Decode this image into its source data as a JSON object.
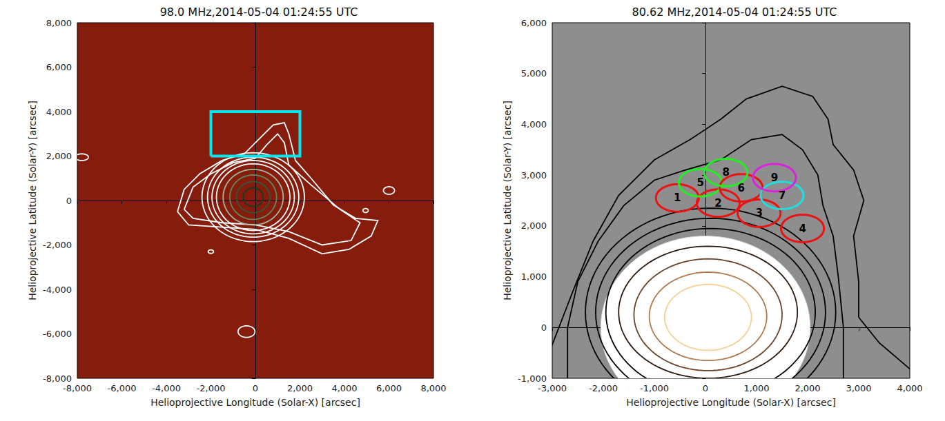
{
  "chart_data": [
    {
      "type": "contour",
      "title": "98.0 MHz,2014-05-04 01:24:55 UTC",
      "xlabel": "Helioprojective Longitude (Solar-X) [arcsec]",
      "ylabel": "Helioprojective Latitude (Solar-Y) [arcsec]",
      "xlim": [
        -8000,
        8000
      ],
      "ylim": [
        -8000,
        8000
      ],
      "xticks": [
        -8000,
        -6000,
        -4000,
        -2000,
        0,
        2000,
        4000,
        6000,
        8000
      ],
      "yticks": [
        -8000,
        -6000,
        -4000,
        -2000,
        0,
        2000,
        4000,
        6000,
        8000
      ],
      "contours": [
        {
          "color": "#ffffff",
          "points": [
            [
              -3500,
              -500
            ],
            [
              -3200,
              500
            ],
            [
              -2500,
              1200
            ],
            [
              -1500,
              1800
            ],
            [
              -500,
              2100
            ],
            [
              200,
              2800
            ],
            [
              800,
              3400
            ],
            [
              1300,
              3500
            ],
            [
              1500,
              3000
            ],
            [
              1800,
              1800
            ],
            [
              2500,
              1000
            ],
            [
              3500,
              -200
            ],
            [
              4500,
              -800
            ],
            [
              5500,
              -900
            ],
            [
              5200,
              -1600
            ],
            [
              4200,
              -2200
            ],
            [
              3000,
              -2400
            ],
            [
              1500,
              -1700
            ],
            [
              0,
              -1300
            ],
            [
              -1500,
              -1200
            ],
            [
              -3000,
              -1100
            ]
          ]
        },
        {
          "color": "#ffffff",
          "points": [
            [
              -3200,
              -400
            ],
            [
              -2800,
              600
            ],
            [
              -2000,
              1200
            ],
            [
              -1000,
              1700
            ],
            [
              0,
              1900
            ],
            [
              500,
              2500
            ],
            [
              1000,
              3000
            ],
            [
              1300,
              2600
            ],
            [
              1500,
              1600
            ],
            [
              2500,
              700
            ],
            [
              3800,
              -400
            ],
            [
              4700,
              -1000
            ],
            [
              4300,
              -1800
            ],
            [
              3000,
              -2000
            ],
            [
              1500,
              -1400
            ],
            [
              0,
              -1100
            ],
            [
              -1500,
              -1000
            ],
            [
              -2800,
              -800
            ]
          ]
        }
      ],
      "contour_ellipses": [
        {
          "color": "#ffffff",
          "cx": -100,
          "cy": 150,
          "rx": 2300,
          "ry": 2000
        },
        {
          "color": "#ffffff",
          "cx": -100,
          "cy": 150,
          "rx": 2050,
          "ry": 1800
        },
        {
          "color": "#ffffff",
          "cx": -100,
          "cy": 150,
          "rx": 1850,
          "ry": 1650
        },
        {
          "color": "#ffffff",
          "cx": -100,
          "cy": 150,
          "rx": 1650,
          "ry": 1500
        },
        {
          "color": "#9fb89a",
          "cx": -100,
          "cy": 150,
          "rx": 1350,
          "ry": 1250
        },
        {
          "color": "#5f8a60",
          "cx": -100,
          "cy": 150,
          "rx": 1050,
          "ry": 1000
        },
        {
          "color": "#2e5a3a",
          "cx": -100,
          "cy": 150,
          "rx": 750,
          "ry": 700
        },
        {
          "color": "#163a24",
          "cx": -100,
          "cy": 150,
          "rx": 450,
          "ry": 420
        },
        {
          "color": "#ffffff",
          "cx": -7800,
          "cy": 1950,
          "rx": 300,
          "ry": 150
        },
        {
          "color": "#ffffff",
          "cx": 6000,
          "cy": 450,
          "rx": 250,
          "ry": 170
        },
        {
          "color": "#ffffff",
          "cx": 4950,
          "cy": -450,
          "rx": 120,
          "ry": 90
        },
        {
          "color": "#ffffff",
          "cx": -2000,
          "cy": -2300,
          "rx": 120,
          "ry": 80
        },
        {
          "color": "#ffffff",
          "cx": -400,
          "cy": -5900,
          "rx": 380,
          "ry": 260
        }
      ],
      "boxes": [
        {
          "color": "#00e8f0",
          "x": [
            -2000,
            2000
          ],
          "y": [
            2000,
            4000
          ]
        }
      ]
    },
    {
      "type": "contour",
      "title": "80.62 MHz,2014-05-04 01:24:55 UTC",
      "xlabel": "Helioprojective Longitude (Solar-X) [arcsec]",
      "ylabel": "Helioprojective Latitude (Solar-Y) [arcsec]",
      "xlim": [
        -3000,
        4000
      ],
      "ylim": [
        -1000,
        6000
      ],
      "xticks": [
        -3000,
        -2000,
        -1000,
        0,
        1000,
        2000,
        3000,
        4000
      ],
      "yticks": [
        -1000,
        0,
        1000,
        2000,
        3000,
        4000,
        5000,
        6000
      ],
      "occulter": {
        "cx": 0,
        "cy": 0,
        "rx": 2050,
        "ry": 1800
      },
      "contours": [
        {
          "color": "#000000",
          "points": [
            [
              -3100,
              -600
            ],
            [
              -2600,
              700
            ],
            [
              -2200,
              1700
            ],
            [
              -1700,
              2600
            ],
            [
              -1000,
              3300
            ],
            [
              -300,
              3700
            ],
            [
              300,
              4100
            ],
            [
              800,
              4500
            ],
            [
              1500,
              4750
            ],
            [
              2100,
              4550
            ],
            [
              2400,
              4100
            ],
            [
              2500,
              3600
            ],
            [
              2900,
              3100
            ],
            [
              3100,
              2500
            ],
            [
              2900,
              1800
            ],
            [
              3000,
              900
            ],
            [
              3000,
              200
            ],
            [
              3400,
              -300
            ],
            [
              4100,
              -900
            ],
            [
              4100,
              -1500
            ],
            [
              -3100,
              -1500
            ]
          ]
        },
        {
          "color": "#000000",
          "points": [
            [
              -2700,
              -1100
            ],
            [
              -2700,
              0
            ],
            [
              -2500,
              900
            ],
            [
              -2100,
              1700
            ],
            [
              -1600,
              2400
            ],
            [
              -1000,
              2900
            ],
            [
              -400,
              3100
            ],
            [
              300,
              3300
            ],
            [
              900,
              3700
            ],
            [
              1500,
              3800
            ],
            [
              1900,
              3500
            ],
            [
              2200,
              3000
            ],
            [
              2300,
              2400
            ],
            [
              2500,
              1800
            ],
            [
              2600,
              1000
            ],
            [
              2700,
              0
            ],
            [
              2700,
              -1100
            ]
          ]
        }
      ],
      "contour_ellipses": [
        {
          "color": "#000000",
          "cx": 100,
          "cy": 300,
          "rx": 2450,
          "ry": 2050
        },
        {
          "color": "#000000",
          "cx": 100,
          "cy": 300,
          "rx": 2250,
          "ry": 1850
        },
        {
          "color": "#000000",
          "cx": 100,
          "cy": 300,
          "rx": 2050,
          "ry": 1650
        },
        {
          "color": "#2a1a10",
          "cx": 50,
          "cy": 300,
          "rx": 1750,
          "ry": 1300
        },
        {
          "color": "#6b4428",
          "cx": 50,
          "cy": 250,
          "rx": 1450,
          "ry": 1100
        },
        {
          "color": "#b07a4e",
          "cx": 50,
          "cy": 220,
          "rx": 1150,
          "ry": 870
        },
        {
          "color": "#f7cf92",
          "cx": 50,
          "cy": 200,
          "rx": 850,
          "ry": 650
        }
      ],
      "regions": [
        {
          "label": "1",
          "color": "#ee1111",
          "cx": -550,
          "cy": 2550,
          "rx": 420,
          "ry": 270
        },
        {
          "label": "2",
          "color": "#ee1111",
          "cx": 250,
          "cy": 2450,
          "rx": 420,
          "ry": 270
        },
        {
          "label": "3",
          "color": "#ee1111",
          "cx": 1050,
          "cy": 2250,
          "rx": 420,
          "ry": 270
        },
        {
          "label": "4",
          "color": "#ee1111",
          "cx": 1900,
          "cy": 1950,
          "rx": 420,
          "ry": 270
        },
        {
          "label": "5",
          "color": "#22ee22",
          "cx": -100,
          "cy": 2850,
          "rx": 420,
          "ry": 270
        },
        {
          "label": "6",
          "color": "#ee1111",
          "cx": 700,
          "cy": 2750,
          "rx": 420,
          "ry": 270
        },
        {
          "label": "7",
          "color": "#22dddd",
          "cx": 1500,
          "cy": 2600,
          "rx": 420,
          "ry": 270
        },
        {
          "label": "8",
          "color": "#22ee22",
          "cx": 400,
          "cy": 3050,
          "rx": 420,
          "ry": 270
        },
        {
          "label": "9",
          "color": "#dd22dd",
          "cx": 1350,
          "cy": 2950,
          "rx": 420,
          "ry": 270
        }
      ]
    }
  ]
}
